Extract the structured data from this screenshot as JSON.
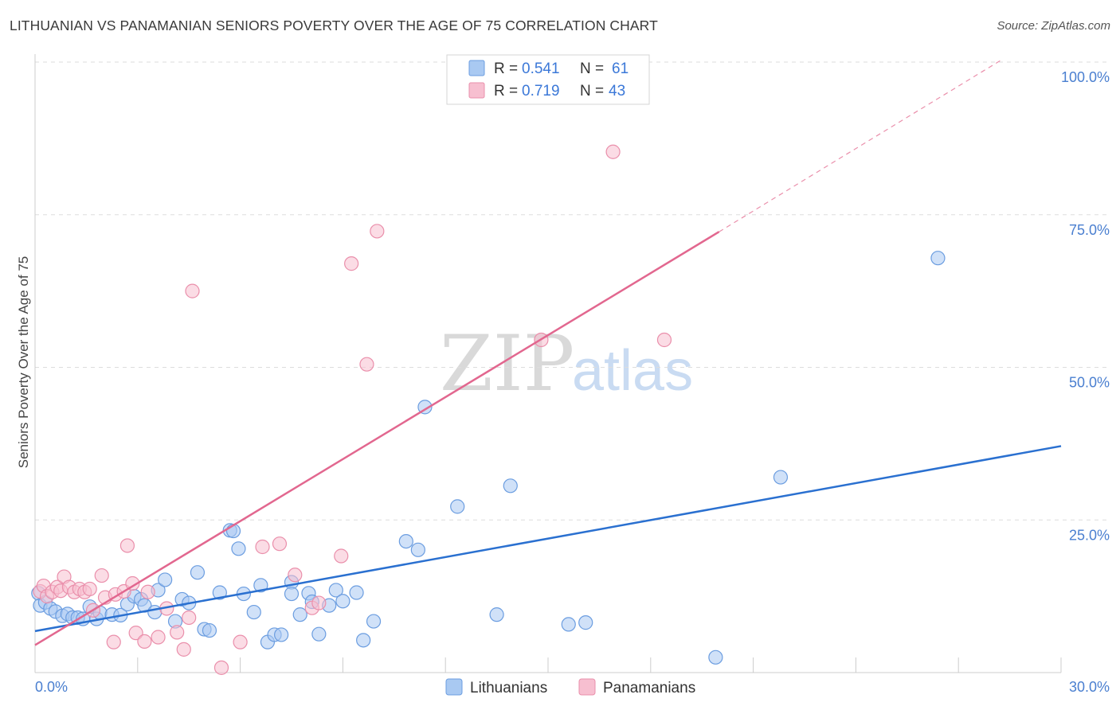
{
  "title": "LITHUANIAN VS PANAMANIAN SENIORS POVERTY OVER THE AGE OF 75 CORRELATION CHART",
  "source": "Source: ZipAtlas.com",
  "watermark": {
    "zip": "ZIP",
    "atlas": "atlas"
  },
  "colors": {
    "lith_fill": "#a9c9f2",
    "lith_stroke": "#6b9de0",
    "lith_line": "#2a70d0",
    "pan_fill": "#f7bfd0",
    "pan_stroke": "#ea8fab",
    "pan_line": "#e2678f",
    "grid": "#dddddd",
    "axis_text": "#4a7fd0"
  },
  "legend": {
    "rows": [
      {
        "r_label": "R = ",
        "r_value": "0.541",
        "n_label": "N = ",
        "n_value": "61"
      },
      {
        "r_label": "R = ",
        "r_value": "0.719",
        "n_label": "N = ",
        "n_value": "43"
      }
    ]
  },
  "bottom_legend": [
    "Lithuanians",
    "Panamanians"
  ],
  "chart_data": {
    "type": "scatter",
    "xlabel": "",
    "ylabel": "Seniors Poverty Over the Age of 75",
    "xlim": [
      0,
      30
    ],
    "ylim": [
      0,
      100
    ],
    "x_tick_labels": {
      "left": "0.0%",
      "right": "30.0%"
    },
    "y_ticks": [
      {
        "value": 25,
        "label": "25.0%"
      },
      {
        "value": 50,
        "label": "50.0%"
      },
      {
        "value": 75,
        "label": "75.0%"
      },
      {
        "value": 100,
        "label": "100.0%"
      }
    ],
    "series": [
      {
        "name": "Lithuanians",
        "r": 0.541,
        "n": 61,
        "trend": {
          "x0": 0,
          "y0": 6.8,
          "x1": 30,
          "y1": 37.1,
          "dashed_to": null
        },
        "points": [
          [
            0.1,
            13.0
          ],
          [
            0.15,
            11.0
          ],
          [
            0.3,
            11.5
          ],
          [
            0.45,
            10.5
          ],
          [
            0.6,
            10.0
          ],
          [
            0.8,
            9.3
          ],
          [
            0.95,
            9.6
          ],
          [
            1.1,
            9.0
          ],
          [
            1.25,
            9.0
          ],
          [
            1.4,
            8.8
          ],
          [
            1.6,
            10.8
          ],
          [
            1.8,
            8.8
          ],
          [
            1.9,
            9.8
          ],
          [
            2.25,
            9.5
          ],
          [
            2.5,
            9.4
          ],
          [
            2.7,
            11.2
          ],
          [
            2.9,
            12.5
          ],
          [
            3.1,
            12.0
          ],
          [
            3.2,
            11.0
          ],
          [
            3.5,
            9.9
          ],
          [
            3.6,
            13.5
          ],
          [
            3.8,
            15.2
          ],
          [
            4.1,
            8.4
          ],
          [
            4.3,
            12.0
          ],
          [
            4.5,
            11.4
          ],
          [
            4.75,
            16.4
          ],
          [
            4.95,
            7.1
          ],
          [
            5.1,
            6.9
          ],
          [
            5.4,
            13.1
          ],
          [
            5.7,
            23.3
          ],
          [
            5.8,
            23.2
          ],
          [
            5.95,
            20.3
          ],
          [
            6.1,
            12.9
          ],
          [
            6.4,
            9.9
          ],
          [
            6.6,
            14.3
          ],
          [
            6.8,
            5.0
          ],
          [
            7.0,
            6.2
          ],
          [
            7.2,
            6.2
          ],
          [
            7.5,
            14.8
          ],
          [
            7.5,
            12.9
          ],
          [
            7.75,
            9.5
          ],
          [
            8.0,
            13.0
          ],
          [
            8.1,
            11.6
          ],
          [
            8.3,
            6.3
          ],
          [
            8.6,
            11.0
          ],
          [
            8.8,
            13.5
          ],
          [
            9.0,
            11.7
          ],
          [
            9.4,
            13.1
          ],
          [
            9.6,
            5.3
          ],
          [
            9.9,
            8.4
          ],
          [
            10.85,
            21.5
          ],
          [
            11.2,
            20.1
          ],
          [
            11.4,
            43.5
          ],
          [
            12.35,
            27.2
          ],
          [
            13.5,
            9.5
          ],
          [
            13.9,
            30.6
          ],
          [
            15.6,
            7.9
          ],
          [
            16.1,
            8.2
          ],
          [
            19.9,
            2.5
          ],
          [
            21.8,
            32.0
          ],
          [
            26.4,
            67.9
          ]
        ]
      },
      {
        "name": "Panamanians",
        "r": 0.719,
        "n": 43,
        "trend": {
          "x0": 0,
          "y0": 4.5,
          "x1": 20.0,
          "y1": 72.2,
          "dashed_to": {
            "x": 28.3,
            "y": 100.5
          }
        },
        "points": [
          [
            0.15,
            13.3
          ],
          [
            0.25,
            14.2
          ],
          [
            0.35,
            12.5
          ],
          [
            0.5,
            13.2
          ],
          [
            0.65,
            14.0
          ],
          [
            0.75,
            13.4
          ],
          [
            0.85,
            15.7
          ],
          [
            1.0,
            14.0
          ],
          [
            1.15,
            13.2
          ],
          [
            1.3,
            13.7
          ],
          [
            1.45,
            13.2
          ],
          [
            1.6,
            13.7
          ],
          [
            1.7,
            10.2
          ],
          [
            1.95,
            15.9
          ],
          [
            2.05,
            12.3
          ],
          [
            2.3,
            5.0
          ],
          [
            2.35,
            12.8
          ],
          [
            2.6,
            13.3
          ],
          [
            2.7,
            20.8
          ],
          [
            2.85,
            14.6
          ],
          [
            2.95,
            6.5
          ],
          [
            3.2,
            5.1
          ],
          [
            3.3,
            13.2
          ],
          [
            3.6,
            5.8
          ],
          [
            3.85,
            10.5
          ],
          [
            4.15,
            6.6
          ],
          [
            4.35,
            3.8
          ],
          [
            4.5,
            9.0
          ],
          [
            4.6,
            62.5
          ],
          [
            5.45,
            0.8
          ],
          [
            6.0,
            5.0
          ],
          [
            6.65,
            20.6
          ],
          [
            7.15,
            21.1
          ],
          [
            7.6,
            16.0
          ],
          [
            8.1,
            10.6
          ],
          [
            8.3,
            11.4
          ],
          [
            8.95,
            19.1
          ],
          [
            9.25,
            67.0
          ],
          [
            9.7,
            50.5
          ],
          [
            10.0,
            72.3
          ],
          [
            14.8,
            54.5
          ],
          [
            16.9,
            85.3
          ],
          [
            18.4,
            54.5
          ]
        ]
      }
    ]
  }
}
